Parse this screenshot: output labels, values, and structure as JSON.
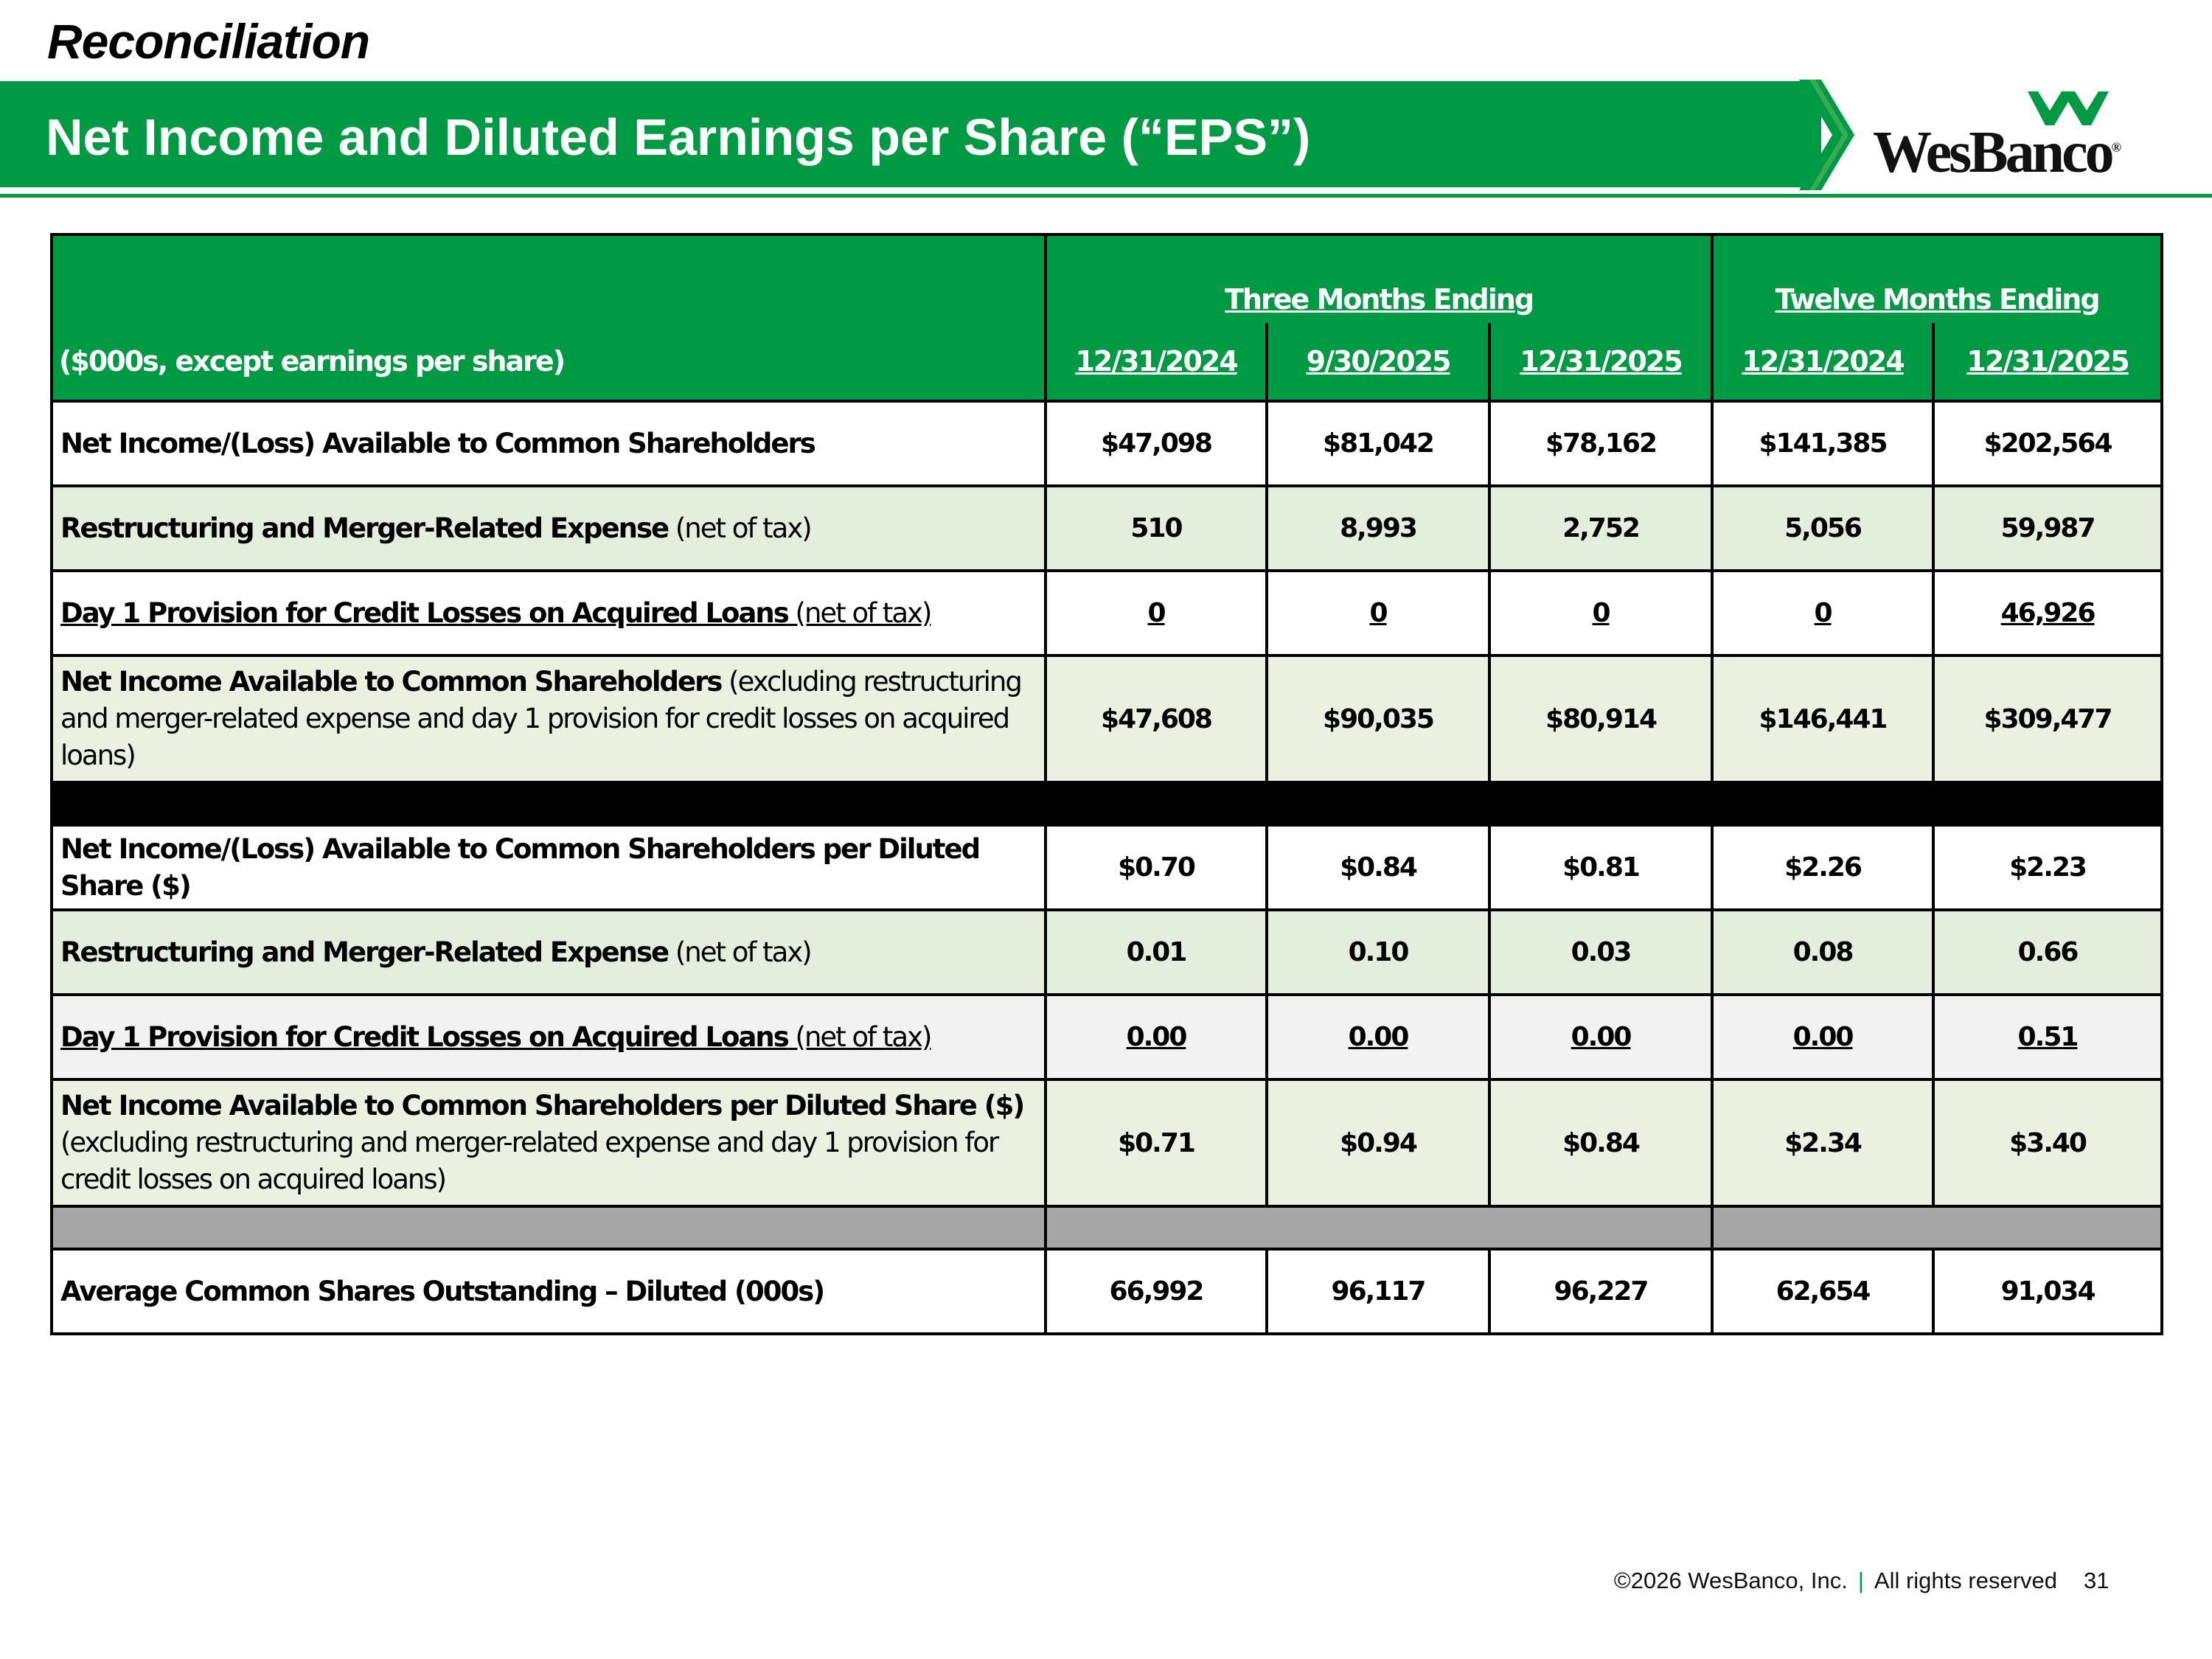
{
  "section_title": "Reconciliation",
  "banner_title": "Net Income and Diluted Earnings per Share (“EPS”)",
  "brand": {
    "name": "WesBanco",
    "registered": "®",
    "green": "#009a44"
  },
  "table": {
    "units_label": "($000s, except earnings per share)",
    "group_headers": [
      "Three Months Ending",
      "Twelve Months Ending"
    ],
    "columns": [
      "12/31/2024",
      "9/30/2025",
      "12/31/2025",
      "12/31/2024",
      "12/31/2025"
    ],
    "rows": [
      {
        "label_bold": "Net Income/(Loss) Available to Common Shareholders",
        "label_rest": "",
        "values": [
          "$47,098",
          "$81,042",
          "$78,162",
          "$141,385",
          "$202,564"
        ]
      },
      {
        "label_bold": "Restructuring and Merger-Related Expense",
        "label_rest": " (net of tax)",
        "values": [
          "510",
          "8,993",
          "2,752",
          "5,056",
          "59,987"
        ]
      },
      {
        "label_bold": "Day 1 Provision for Credit Losses on Acquired Loans",
        "label_rest": " (net of tax)",
        "values": [
          "0",
          "0",
          "0",
          "0",
          "46,926"
        ]
      },
      {
        "label_bold": "Net Income Available to Common Shareholders",
        "label_rest": " (excluding restructuring and merger-related expense and day 1 provision for credit losses on acquired loans)",
        "values": [
          "$47,608",
          "$90,035",
          "$80,914",
          "$146,441",
          "$309,477"
        ]
      },
      {
        "label_bold": "Net Income/(Loss) Available to Common Shareholders per Diluted Share ($)",
        "label_rest": "",
        "values": [
          "$0.70",
          "$0.84",
          "$0.81",
          "$2.26",
          "$2.23"
        ]
      },
      {
        "label_bold": "Restructuring and Merger-Related Expense",
        "label_rest": " (net of tax)",
        "values": [
          "0.01",
          "0.10",
          "0.03",
          "0.08",
          "0.66"
        ]
      },
      {
        "label_bold": "Day 1 Provision for Credit Losses on Acquired Loans",
        "label_rest": " (net of tax)",
        "values": [
          "0.00",
          "0.00",
          "0.00",
          "0.00",
          "0.51"
        ]
      },
      {
        "label_bold": "Net Income Available to Common Shareholders per Diluted Share ($)",
        "label_rest": "(excluding restructuring and merger-related expense and day 1 provision for credit losses on acquired loans)",
        "values": [
          "$0.71",
          "$0.94",
          "$0.84",
          "$2.34",
          "$3.40"
        ]
      },
      {
        "label_bold": "Average Common Shares Outstanding – Diluted (000s)",
        "label_rest": "",
        "values": [
          "66,992",
          "96,117",
          "96,227",
          "62,654",
          "91,034"
        ]
      }
    ]
  },
  "footer": {
    "copyright": "©2026 WesBanco, Inc.",
    "separator": "|",
    "rights": "All rights reserved",
    "page_number": "31"
  }
}
